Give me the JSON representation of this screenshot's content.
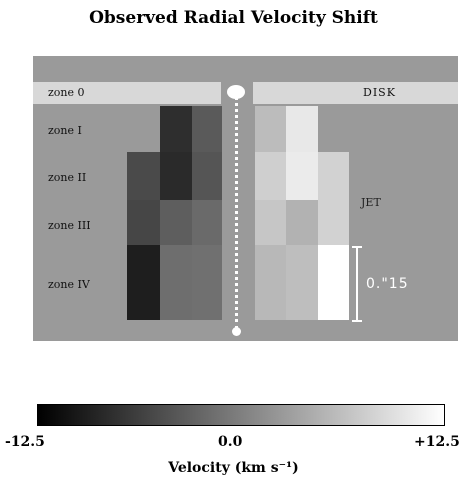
{
  "title": "Observed Radial Velocity Shift",
  "disk_label": "DISK",
  "jet_label": "JET",
  "zones": [
    "zone 0",
    "zone I",
    "zone II",
    "zone III",
    "zone IV"
  ],
  "scale_label": "0.\"15",
  "colorbar": {
    "min_label": "-12.5",
    "mid_label": "0.0",
    "max_label": "+12.5",
    "title": "Velocity (km s⁻¹)",
    "colors": [
      "#000000",
      "#ffffff"
    ]
  },
  "left_cells": [
    {
      "row": 1,
      "col": 1,
      "color": "#2e2e2e"
    },
    {
      "row": 1,
      "col": 2,
      "color": "#5a5a5a"
    },
    {
      "row": 2,
      "col": 0,
      "color": "#4a4a4a"
    },
    {
      "row": 2,
      "col": 1,
      "color": "#2a2a2a"
    },
    {
      "row": 2,
      "col": 2,
      "color": "#555555"
    },
    {
      "row": 3,
      "col": 0,
      "color": "#464646"
    },
    {
      "row": 3,
      "col": 1,
      "color": "#5e5e5e"
    },
    {
      "row": 3,
      "col": 2,
      "color": "#6a6a6a"
    },
    {
      "row": 4,
      "col": 0,
      "color": "#1e1e1e"
    },
    {
      "row": 4,
      "col": 1,
      "color": "#6e6e6e"
    },
    {
      "row": 4,
      "col": 2,
      "color": "#707070"
    }
  ],
  "right_cells": [
    {
      "row": 1,
      "col": 0,
      "color": "#bcbcbc"
    },
    {
      "row": 1,
      "col": 1,
      "color": "#e8e8e8"
    },
    {
      "row": 2,
      "col": 0,
      "color": "#cfcfcf"
    },
    {
      "row": 2,
      "col": 1,
      "color": "#ebebeb"
    },
    {
      "row": 2,
      "col": 2,
      "color": "#d2d2d2"
    },
    {
      "row": 3,
      "col": 0,
      "color": "#c6c6c6"
    },
    {
      "row": 3,
      "col": 1,
      "color": "#b2b2b2"
    },
    {
      "row": 3,
      "col": 2,
      "color": "#d2d2d2"
    },
    {
      "row": 4,
      "col": 0,
      "color": "#b8b8b8"
    },
    {
      "row": 4,
      "col": 1,
      "color": "#bebebe"
    },
    {
      "row": 4,
      "col": 2,
      "color": "#ffffff"
    }
  ]
}
